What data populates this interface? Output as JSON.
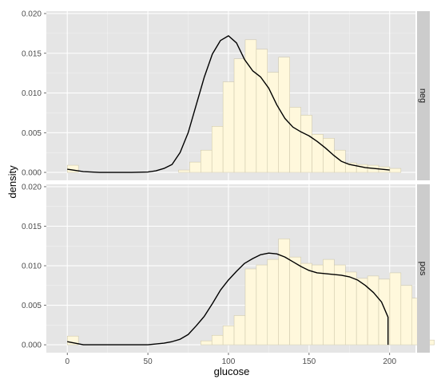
{
  "chart_data": {
    "type": "histogram+density",
    "xlabel": "glucose",
    "ylabel": "density",
    "x_ticks": [
      0,
      50,
      100,
      150,
      200
    ],
    "y_ticks": [
      0.0,
      0.005,
      0.01,
      0.015,
      0.02
    ],
    "y_tick_labels": [
      "0.000",
      "0.005",
      "0.010",
      "0.015",
      "0.020"
    ],
    "xlim": [
      -13,
      216
    ],
    "ylim": [
      -0.001,
      0.0203
    ],
    "bin_width": 6.9,
    "bin_start": 0,
    "colors": {
      "panel": "#e5e5e5",
      "grid_major": "#ffffff",
      "grid_minor": "#f2f2f2",
      "bar_fill": "#fff8dc",
      "bar_stroke": "#c8c2a5",
      "strip": "#cccccc",
      "line": "#000000"
    },
    "facets": [
      {
        "label": "neg",
        "bars": [
          0.0009,
          0,
          0,
          0,
          0,
          0,
          0,
          0,
          0,
          0,
          0.0003,
          0.0013,
          0.0028,
          0.0058,
          0.0114,
          0.0143,
          0.0167,
          0.0155,
          0.0126,
          0.0145,
          0.0082,
          0.0072,
          0.0048,
          0.0043,
          0.0028,
          0.0012,
          0.001,
          0.0009,
          0.0007,
          0.0005
        ],
        "density": {
          "x": [
            0,
            10,
            20,
            30,
            40,
            50,
            55,
            60,
            65,
            70,
            75,
            80,
            85,
            90,
            95,
            100,
            105,
            110,
            115,
            120,
            125,
            130,
            135,
            140,
            145,
            150,
            155,
            160,
            165,
            170,
            175,
            180,
            185,
            190,
            195,
            200
          ],
          "y": [
            0.0004,
            0.0001,
            0,
            0,
            0,
            5e-05,
            0.0002,
            0.0005,
            0.001,
            0.0025,
            0.005,
            0.0085,
            0.012,
            0.0149,
            0.0166,
            0.0172,
            0.0163,
            0.0142,
            0.0128,
            0.012,
            0.0106,
            0.0085,
            0.0068,
            0.0057,
            0.0051,
            0.0046,
            0.0039,
            0.0031,
            0.0022,
            0.0014,
            0.001,
            0.0008,
            0.0006,
            0.0005,
            0.0004,
            0.0003
          ]
        }
      },
      {
        "label": "pos",
        "bars": [
          0.0011,
          0,
          0,
          0,
          0,
          0,
          0,
          0,
          0,
          0,
          0,
          0,
          0.0005,
          0.0012,
          0.0024,
          0.0037,
          0.0096,
          0.0101,
          0.0108,
          0.0134,
          0.0111,
          0.0103,
          0.0101,
          0.0108,
          0.0101,
          0.0092,
          0.0084,
          0.0087,
          0.0083,
          0.0091,
          0.0075,
          0.0059,
          0.0006
        ],
        "density": {
          "x": [
            0,
            10,
            20,
            30,
            40,
            50,
            55,
            60,
            65,
            70,
            75,
            80,
            85,
            90,
            95,
            100,
            105,
            110,
            115,
            120,
            125,
            130,
            135,
            140,
            145,
            150,
            155,
            160,
            165,
            170,
            175,
            180,
            185,
            190,
            195,
            199,
            199
          ],
          "y": [
            0.0004,
            0,
            0,
            0,
            0,
            0,
            0.0001,
            0.0002,
            0.0004,
            0.0007,
            0.0013,
            0.0024,
            0.0036,
            0.0052,
            0.0069,
            0.0082,
            0.0093,
            0.0103,
            0.0109,
            0.0114,
            0.0116,
            0.0115,
            0.0111,
            0.0105,
            0.0099,
            0.0094,
            0.0091,
            0.009,
            0.0089,
            0.0088,
            0.0086,
            0.0082,
            0.0075,
            0.0066,
            0.0054,
            0.0035,
            0
          ]
        }
      }
    ]
  }
}
